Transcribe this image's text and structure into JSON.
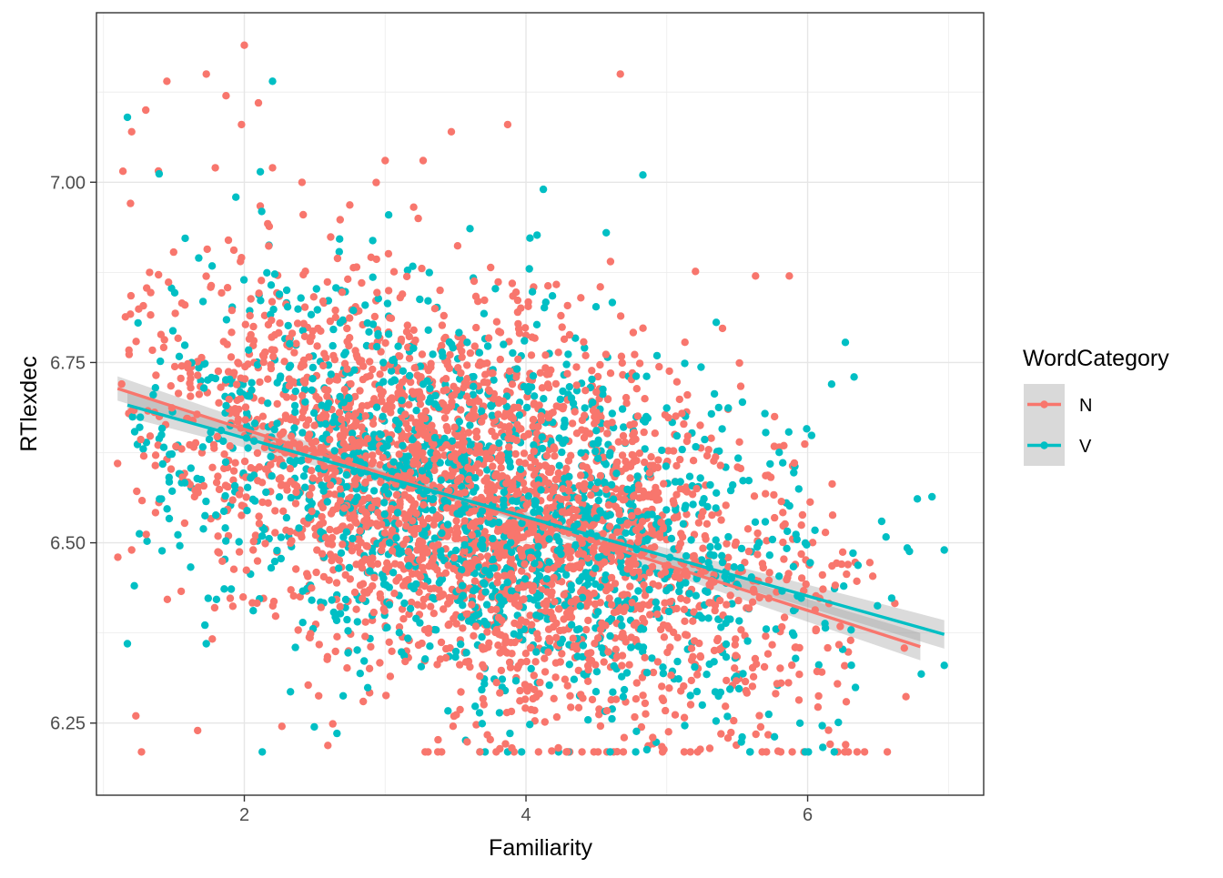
{
  "chart_data": {
    "type": "scatter",
    "title": "",
    "xlabel": "Familiarity",
    "ylabel": "RTlexdec",
    "xlim": [
      0.95,
      7.25
    ],
    "ylim": [
      6.15,
      7.235
    ],
    "x_ticks": [
      2,
      4,
      6
    ],
    "x_tick_labels": [
      "2",
      "4",
      "6"
    ],
    "y_ticks": [
      6.25,
      6.5,
      6.75,
      7.0
    ],
    "y_tick_labels": [
      "6.25",
      "6.50",
      "6.75",
      "7.00"
    ],
    "grid": true,
    "legend": {
      "title": "WordCategory",
      "position": "right"
    },
    "series": [
      {
        "name": "N",
        "color": "#F8766D",
        "n_points": 2904,
        "x_range": [
          1.1,
          6.8
        ],
        "trend": {
          "intercept": 6.783,
          "slope": -0.0628,
          "x_range": [
            1.1,
            6.8
          ]
        },
        "outliers": [
          [
            2.0,
            7.19
          ],
          [
            1.73,
            7.15
          ],
          [
            1.45,
            7.14
          ],
          [
            4.67,
            7.15
          ],
          [
            1.3,
            7.1
          ],
          [
            1.87,
            7.12
          ],
          [
            2.1,
            7.11
          ],
          [
            1.98,
            7.08
          ],
          [
            1.2,
            7.07
          ],
          [
            3.87,
            7.08
          ],
          [
            3.47,
            7.07
          ],
          [
            3.0,
            7.03
          ],
          [
            3.27,
            7.03
          ],
          [
            2.2,
            7.02
          ],
          [
            5.87,
            6.87
          ],
          [
            5.63,
            6.87
          ],
          [
            1.2,
            6.49
          ],
          [
            1.23,
            6.26
          ],
          [
            1.27,
            6.21
          ],
          [
            6.27,
            6.22
          ],
          [
            4.6,
            6.89
          ],
          [
            1.1,
            6.61
          ],
          [
            4.9,
            6.23
          ],
          [
            4.97,
            6.21
          ]
        ]
      },
      {
        "name": "V",
        "color": "#00BFC4",
        "n_points": 1664,
        "x_range": [
          1.17,
          6.97
        ],
        "trend": {
          "intercept": 6.755,
          "slope": -0.0548,
          "x_range": [
            1.17,
            6.97
          ]
        },
        "outliers": [
          [
            2.2,
            7.14
          ],
          [
            1.17,
            7.09
          ],
          [
            4.83,
            7.01
          ],
          [
            4.57,
            6.93
          ],
          [
            1.17,
            6.36
          ],
          [
            1.73,
            6.36
          ],
          [
            6.97,
            6.49
          ],
          [
            6.97,
            6.33
          ],
          [
            3.87,
            6.21
          ],
          [
            4.3,
            6.21
          ],
          [
            6.33,
            6.73
          ],
          [
            6.17,
            6.72
          ]
        ]
      }
    ]
  }
}
